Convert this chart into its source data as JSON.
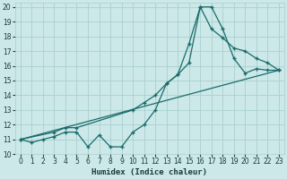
{
  "xlabel": "Humidex (Indice chaleur)",
  "bg_color": "#cce8e8",
  "grid_color": "#aacfcf",
  "line_color": "#1a6b6b",
  "xlim": [
    -0.5,
    23.5
  ],
  "ylim": [
    10,
    20.3
  ],
  "yticks": [
    10,
    11,
    12,
    13,
    14,
    15,
    16,
    17,
    18,
    19,
    20
  ],
  "xticks": [
    0,
    1,
    2,
    3,
    4,
    5,
    6,
    7,
    8,
    9,
    10,
    11,
    12,
    13,
    14,
    15,
    16,
    17,
    18,
    19,
    20,
    21,
    22,
    23
  ],
  "line1_x": [
    0,
    1,
    2,
    3,
    4,
    5,
    6,
    7,
    8,
    9,
    10,
    11,
    12,
    13,
    14,
    15,
    16,
    17,
    18,
    19,
    20,
    21,
    22,
    23
  ],
  "line1_y": [
    11,
    10.8,
    11,
    11.2,
    11.5,
    11.5,
    10.5,
    11.3,
    10.5,
    10.5,
    11.5,
    12,
    13,
    14.8,
    15.4,
    17.5,
    20,
    20,
    18.5,
    16.5,
    15.5,
    15.8,
    15.7,
    15.7
  ],
  "line2_x": [
    0,
    3,
    4,
    5,
    10,
    11,
    12,
    13,
    14,
    15,
    16,
    17,
    18,
    19,
    20,
    21,
    22,
    23
  ],
  "line2_y": [
    11,
    11.5,
    11.8,
    11.8,
    13,
    13.5,
    14,
    14.8,
    15.4,
    16.2,
    20,
    18.5,
    17.9,
    17.2,
    17.0,
    16.5,
    16.2,
    15.7
  ],
  "line3_x": [
    0,
    23
  ],
  "line3_y": [
    11,
    15.7
  ]
}
